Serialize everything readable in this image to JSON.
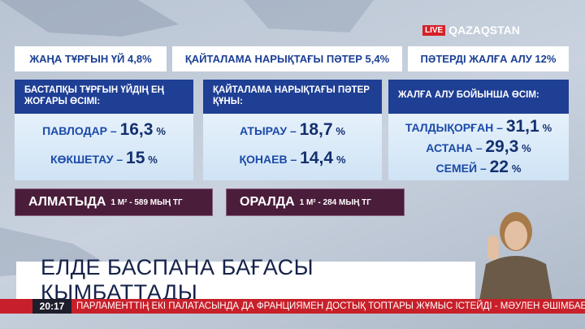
{
  "channel": {
    "live": "LIVE",
    "name": "QAZAQSTAN"
  },
  "top_boxes": [
    "ЖАҢА ТҰРҒЫН ҮЙ 4,8%",
    "ҚАЙТАЛАМА НАРЫҚТАҒЫ ПӘТЕР 5,4%",
    "ПӘТЕРДІ ЖАЛҒА АЛУ 12%"
  ],
  "panels": [
    {
      "header": "БАСТАПҚЫ ТҰРҒЫН ҮЙДІҢ ЕҢ ЖОҒАРЫ ӨСІМІ:",
      "rows": [
        {
          "city": "ПАВЛОДАР –",
          "value": "16,3",
          "unit": "%"
        },
        {
          "city": "КӨКШЕТАУ –",
          "value": "15",
          "unit": "%"
        }
      ]
    },
    {
      "header": "ҚАЙТАЛАМА НАРЫҚТАҒЫ ПӘТЕР ҚҰНЫ:",
      "rows": [
        {
          "city": "АТЫРАУ –",
          "value": "18,7",
          "unit": "%"
        },
        {
          "city": "ҚОНАЕВ –",
          "value": "14,4",
          "unit": "%"
        }
      ]
    },
    {
      "header": "ЖАЛҒА АЛУ БОЙЫНША ӨСІМ:",
      "rows": [
        {
          "city": "ТАЛДЫҚОРҒАН –",
          "value": "31,1",
          "unit": "%"
        },
        {
          "city": "АСТАНА –",
          "value": "29,3",
          "unit": "%"
        },
        {
          "city": "СЕМЕЙ –",
          "value": "22",
          "unit": "%"
        }
      ]
    }
  ],
  "price_boxes": [
    {
      "city": "АЛМАТЫДА",
      "price": "1 М² - 589 МЫҢ ТГ"
    },
    {
      "city": "ОРАЛДА",
      "price": "1 М² - 284 МЫҢ ТГ"
    }
  ],
  "headline": "ЕЛДЕ БАСПАНА БАҒАСЫ ҚЫМБАТТАДЫ",
  "ticker": {
    "time": "20:17",
    "text": "ПАРЛАМЕНТТІҢ ЕКІ ПАЛАТАСЫНДА ДА ФРАНЦИЯМЕН ДОСТЫҚ ТОПТАРЫ ЖҰМЫС ІСТЕЙДІ - МӘУЛЕН ӘШІМБАЕВ"
  }
}
